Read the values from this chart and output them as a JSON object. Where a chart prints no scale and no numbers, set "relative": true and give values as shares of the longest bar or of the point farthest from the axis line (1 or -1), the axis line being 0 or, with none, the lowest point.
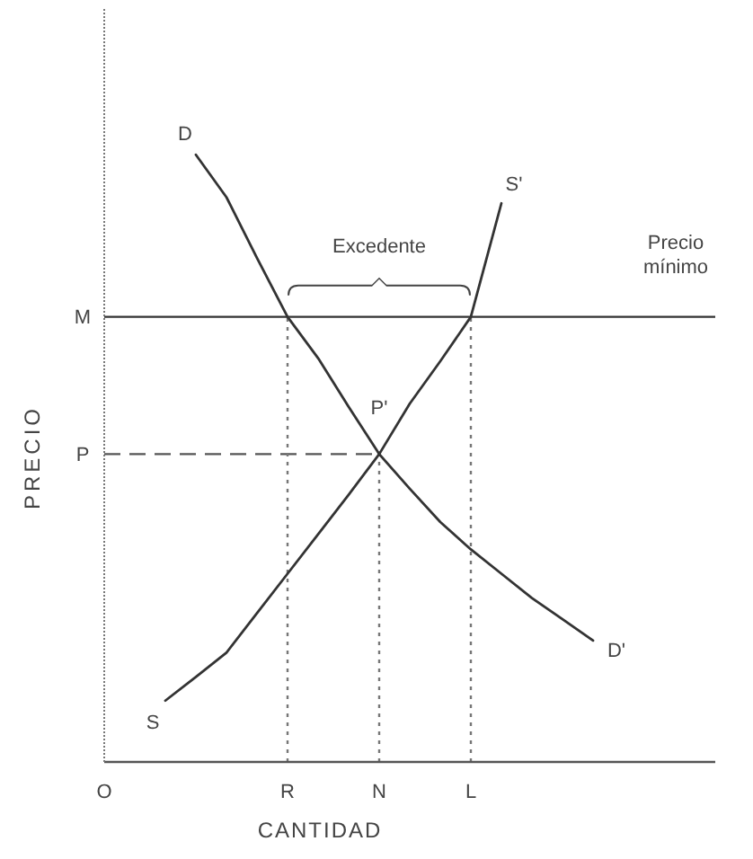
{
  "chart_data": {
    "type": "line",
    "relative": true,
    "xlabel": "CANTIDAD",
    "ylabel": "PRECIO",
    "categories": [
      "O",
      null,
      null,
      null,
      null,
      null,
      "R",
      null,
      null,
      "N",
      null,
      null,
      "L",
      null,
      null,
      null,
      null,
      null,
      null,
      null,
      null
    ],
    "series": [
      {
        "color": "#333333",
        "values": [
          null,
          null,
          null,
          1,
          0.93,
          0.83,
          0.733,
          0.665,
          0.585,
          0.507,
          0.45,
          0.395,
          0.35,
          0.31,
          0.27,
          0.235,
          0.2,
          null,
          null,
          null,
          null
        ]
      },
      {
        "color": "#333333",
        "values": [
          null,
          null,
          0.101,
          0.14,
          0.18,
          0.245,
          0.31,
          0.375,
          0.44,
          0.507,
          0.59,
          0.66,
          0.733,
          0.92,
          null,
          null,
          null,
          null,
          null,
          null,
          null
        ]
      }
    ],
    "ref_lines": [
      {
        "axis": "y",
        "value": 0.733,
        "label": "M",
        "line_style": "solid",
        "color": "#333333"
      },
      {
        "axis": "y",
        "value": 0.507,
        "label": "P",
        "line_style": "dashed",
        "color": "#555555"
      },
      {
        "axis": "x",
        "value": "R",
        "line_style": "dotted",
        "color": "#777777"
      },
      {
        "axis": "x",
        "value": "N",
        "line_style": "dotted",
        "color": "#777777"
      },
      {
        "axis": "x",
        "value": "L",
        "line_style": "dotted",
        "color": "#777777"
      }
    ],
    "annotations": [
      "Excedente",
      "Precio mínimo",
      "D",
      "D'",
      "S",
      "S'",
      "P'"
    ],
    "marker": "none"
  }
}
